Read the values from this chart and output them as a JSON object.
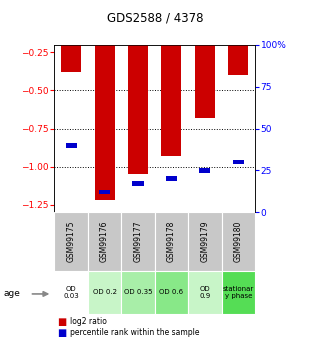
{
  "title": "GDS2588 / 4378",
  "samples": [
    "GSM99175",
    "GSM99176",
    "GSM99177",
    "GSM99178",
    "GSM99179",
    "GSM99180"
  ],
  "log2_ratios": [
    -0.38,
    -1.22,
    -1.05,
    -0.93,
    -0.68,
    -0.4
  ],
  "percentile_ranks": [
    40,
    12,
    17,
    20,
    25,
    30
  ],
  "ylim_left": [
    -1.3,
    -0.2
  ],
  "ylim_right": [
    0,
    100
  ],
  "yticks_left": [
    -1.25,
    -1.0,
    -0.75,
    -0.5,
    -0.25
  ],
  "yticks_right": [
    0,
    25,
    50,
    75,
    100
  ],
  "hlines": [
    -0.5,
    -0.75,
    -1.0
  ],
  "age_labels": [
    "OD\n0.03",
    "OD 0.2",
    "OD 0.35",
    "OD 0.6",
    "OD\n0.9",
    "stationar\ny phase"
  ],
  "age_bg_colors": [
    "#ffffff",
    "#c8f5c8",
    "#a8eeA8",
    "#88e888",
    "#c8f5c8",
    "#55dd55"
  ],
  "bar_color": "#cc0000",
  "percentile_color": "#0000cc",
  "bar_width": 0.6,
  "gsm_bg": "#c8c8c8",
  "legend_red": "log2 ratio",
  "legend_blue": "percentile rank within the sample"
}
